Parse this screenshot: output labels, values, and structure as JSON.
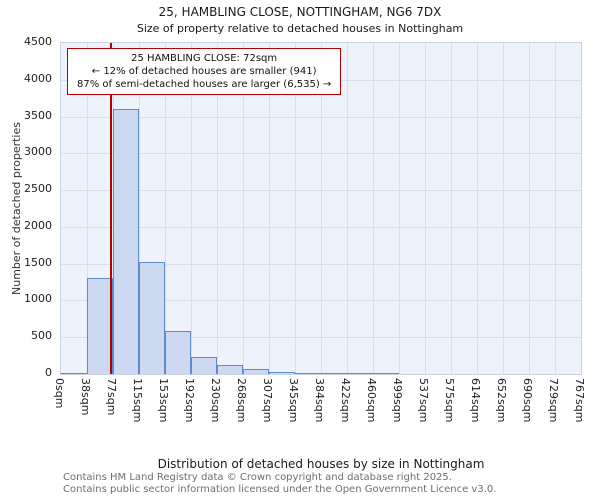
{
  "title": "25, HAMBLING CLOSE, NOTTINGHAM, NG6 7DX",
  "subtitle": "Size of property relative to detached houses in Nottingham",
  "chart_data": {
    "type": "bar",
    "title": "25, HAMBLING CLOSE, NOTTINGHAM, NG6 7DX",
    "subtitle": "Size of property relative to detached houses in Nottingham",
    "xlabel": "Distribution of detached houses by size in Nottingham",
    "ylabel": "Number of detached properties",
    "ylim": [
      0,
      4500
    ],
    "ytick_step": 500,
    "xmax": 767,
    "bin_labels": [
      "0sqm",
      "38sqm",
      "77sqm",
      "115sqm",
      "153sqm",
      "192sqm",
      "230sqm",
      "268sqm",
      "307sqm",
      "345sqm",
      "384sqm",
      "422sqm",
      "460sqm",
      "499sqm",
      "537sqm",
      "575sqm",
      "614sqm",
      "652sqm",
      "690sqm",
      "729sqm",
      "767sqm"
    ],
    "values": [
      20,
      1300,
      3600,
      1520,
      590,
      230,
      125,
      70,
      30,
      15,
      10,
      5,
      15,
      0,
      0,
      0,
      0,
      0,
      0,
      0
    ],
    "marker": {
      "value": 72,
      "unit": "sqm"
    },
    "annotation": {
      "line1": "25 HAMBLING CLOSE: 72sqm",
      "line2": "← 12% of detached houses are smaller (941)",
      "line3": "87% of semi-detached houses are larger (6,535) →"
    },
    "colors": {
      "bar_fill": "#ccd9f1",
      "bar_edge": "#5e8cd1",
      "marker_line": "#b40000",
      "plot_bg": "#eef2fa",
      "grid": "#d7deee"
    },
    "grid": true,
    "legend": false
  },
  "footer": {
    "line1": "Contains HM Land Registry data © Crown copyright and database right 2025.",
    "line2": "Contains public sector information licensed under the Open Government Licence v3.0."
  }
}
